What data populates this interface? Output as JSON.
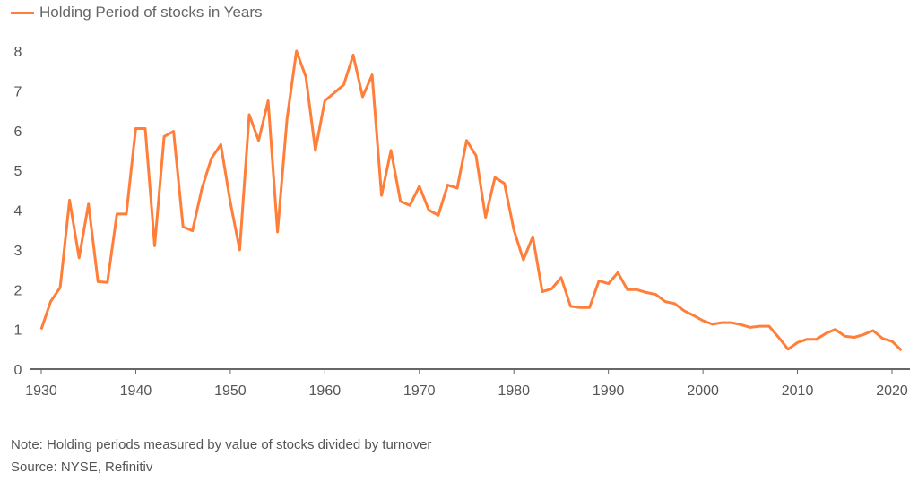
{
  "chart_data": {
    "type": "line",
    "title": "",
    "xlabel": "",
    "ylabel": "",
    "legend_position": "top-left",
    "grid": false,
    "xlim": [
      1930,
      2021
    ],
    "ylim": [
      0,
      8
    ],
    "x_ticks": [
      "1930",
      "1940",
      "1950",
      "1960",
      "1970",
      "1980",
      "1990",
      "2000",
      "2010",
      "2020"
    ],
    "y_ticks": [
      "0",
      "1",
      "2",
      "3",
      "4",
      "5",
      "6",
      "7",
      "8"
    ],
    "series": [
      {
        "name": "Holding Period of stocks in Years",
        "color": "#ff7f3a",
        "x": [
          1930,
          1931,
          1932,
          1933,
          1934,
          1935,
          1936,
          1937,
          1938,
          1939,
          1940,
          1941,
          1942,
          1943,
          1944,
          1945,
          1946,
          1947,
          1948,
          1949,
          1950,
          1951,
          1952,
          1953,
          1954,
          1955,
          1956,
          1957,
          1958,
          1959,
          1960,
          1961,
          1962,
          1963,
          1964,
          1965,
          1966,
          1967,
          1968,
          1969,
          1970,
          1971,
          1972,
          1973,
          1974,
          1975,
          1976,
          1977,
          1978,
          1979,
          1980,
          1981,
          1982,
          1983,
          1984,
          1985,
          1986,
          1987,
          1988,
          1989,
          1990,
          1991,
          1992,
          1993,
          1994,
          1995,
          1996,
          1997,
          1998,
          1999,
          2000,
          2001,
          2002,
          2003,
          2004,
          2005,
          2006,
          2007,
          2008,
          2009,
          2010,
          2011,
          2012,
          2013,
          2014,
          2015,
          2016,
          2017,
          2018,
          2019,
          2020,
          2021
        ],
        "y": [
          1.0,
          1.7,
          2.05,
          4.25,
          2.8,
          4.15,
          2.2,
          2.18,
          3.9,
          3.9,
          6.05,
          6.05,
          3.1,
          5.85,
          5.98,
          3.58,
          3.48,
          4.55,
          5.3,
          5.65,
          4.2,
          3.0,
          6.4,
          5.75,
          6.75,
          3.45,
          6.3,
          8.0,
          7.35,
          5.5,
          6.75,
          6.95,
          7.15,
          7.9,
          6.85,
          7.4,
          4.37,
          5.5,
          4.22,
          4.12,
          4.6,
          4.0,
          3.87,
          4.63,
          4.55,
          5.75,
          5.37,
          3.82,
          4.82,
          4.67,
          3.5,
          2.75,
          3.33,
          1.95,
          2.02,
          2.3,
          1.58,
          1.55,
          1.55,
          2.22,
          2.15,
          2.43,
          2.0,
          2.0,
          1.93,
          1.88,
          1.7,
          1.65,
          1.47,
          1.35,
          1.22,
          1.13,
          1.17,
          1.17,
          1.12,
          1.05,
          1.08,
          1.08,
          0.8,
          0.5,
          0.67,
          0.75,
          0.75,
          0.9,
          1.0,
          0.83,
          0.8,
          0.87,
          0.97,
          0.77,
          0.7,
          0.47
        ]
      }
    ]
  },
  "notes": {
    "note": "Note: Holding periods measured by value of stocks divided by turnover",
    "source": "Source: NYSE, Refinitiv"
  }
}
